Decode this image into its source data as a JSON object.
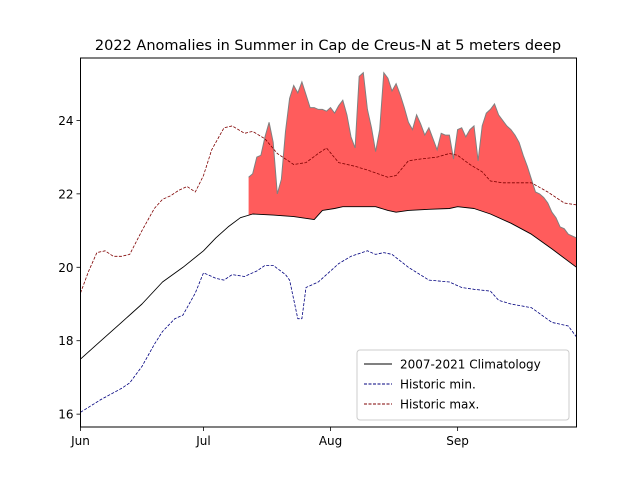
{
  "chart_data": {
    "type": "line",
    "title": "2022 Anomalies in Summer in Cap de Creus-N at 5 meters deep",
    "xlabel": "",
    "ylabel": "",
    "x_range_days": [
      0,
      121
    ],
    "x_ticks": [
      {
        "label": "Jun",
        "day": 0
      },
      {
        "label": "Jul",
        "day": 30
      },
      {
        "label": "Aug",
        "day": 61
      },
      {
        "label": "Sep",
        "day": 92
      }
    ],
    "ylim": [
      15.65,
      25.7
    ],
    "y_ticks": [
      16,
      18,
      20,
      22,
      24
    ],
    "grid": false,
    "legend_position": "lower-right",
    "series": [
      {
        "name": "2007-2021 Climatology",
        "color": "#000000",
        "style": "solid",
        "points": [
          [
            0,
            17.5
          ],
          [
            5,
            18.0
          ],
          [
            10,
            18.5
          ],
          [
            15,
            19.0
          ],
          [
            20,
            19.6
          ],
          [
            25,
            20.0
          ],
          [
            30,
            20.45
          ],
          [
            33,
            20.8
          ],
          [
            36,
            21.1
          ],
          [
            39,
            21.35
          ],
          [
            42,
            21.45
          ],
          [
            47,
            21.42
          ],
          [
            52,
            21.38
          ],
          [
            57,
            21.3
          ],
          [
            59,
            21.55
          ],
          [
            62,
            21.6
          ],
          [
            64,
            21.65
          ],
          [
            69,
            21.65
          ],
          [
            72,
            21.65
          ],
          [
            75,
            21.55
          ],
          [
            77,
            21.5
          ],
          [
            80,
            21.55
          ],
          [
            85,
            21.58
          ],
          [
            90,
            21.6
          ],
          [
            92,
            21.65
          ],
          [
            96,
            21.6
          ],
          [
            100,
            21.45
          ],
          [
            105,
            21.2
          ],
          [
            110,
            20.9
          ],
          [
            115,
            20.5
          ],
          [
            121,
            20.0
          ]
        ]
      },
      {
        "name": "Historic min.",
        "color": "#00007f",
        "style": "dashed",
        "points": [
          [
            0,
            16.05
          ],
          [
            5,
            16.4
          ],
          [
            10,
            16.7
          ],
          [
            12,
            16.85
          ],
          [
            15,
            17.3
          ],
          [
            18,
            17.9
          ],
          [
            20,
            18.25
          ],
          [
            23,
            18.6
          ],
          [
            25,
            18.7
          ],
          [
            28,
            19.3
          ],
          [
            30,
            19.85
          ],
          [
            33,
            19.7
          ],
          [
            35,
            19.65
          ],
          [
            37,
            19.8
          ],
          [
            40,
            19.75
          ],
          [
            43,
            19.9
          ],
          [
            45,
            20.05
          ],
          [
            47,
            20.05
          ],
          [
            50,
            19.8
          ],
          [
            51,
            19.65
          ],
          [
            53,
            18.6
          ],
          [
            54,
            18.6
          ],
          [
            55,
            19.45
          ],
          [
            58,
            19.6
          ],
          [
            60,
            19.8
          ],
          [
            63,
            20.1
          ],
          [
            66,
            20.3
          ],
          [
            70,
            20.45
          ],
          [
            72,
            20.35
          ],
          [
            74,
            20.4
          ],
          [
            76,
            20.35
          ],
          [
            80,
            20.0
          ],
          [
            85,
            19.65
          ],
          [
            90,
            19.6
          ],
          [
            93,
            19.45
          ],
          [
            96,
            19.4
          ],
          [
            100,
            19.35
          ],
          [
            102,
            19.1
          ],
          [
            105,
            19.0
          ],
          [
            110,
            18.9
          ],
          [
            115,
            18.5
          ],
          [
            119,
            18.4
          ],
          [
            121,
            18.1
          ]
        ]
      },
      {
        "name": "Historic max.",
        "color": "#7f0000",
        "style": "dashed",
        "points": [
          [
            0,
            19.3
          ],
          [
            2,
            19.9
          ],
          [
            4,
            20.4
          ],
          [
            6,
            20.45
          ],
          [
            8,
            20.3
          ],
          [
            10,
            20.3
          ],
          [
            12,
            20.35
          ],
          [
            15,
            21.0
          ],
          [
            18,
            21.6
          ],
          [
            20,
            21.85
          ],
          [
            22,
            21.95
          ],
          [
            24,
            22.1
          ],
          [
            26,
            22.2
          ],
          [
            28,
            22.05
          ],
          [
            30,
            22.5
          ],
          [
            32,
            23.2
          ],
          [
            35,
            23.8
          ],
          [
            37,
            23.85
          ],
          [
            40,
            23.65
          ],
          [
            42,
            23.7
          ],
          [
            45,
            23.5
          ],
          [
            48,
            23.1
          ],
          [
            52,
            22.8
          ],
          [
            55,
            22.85
          ],
          [
            58,
            23.1
          ],
          [
            60,
            23.25
          ],
          [
            63,
            22.85
          ],
          [
            67,
            22.75
          ],
          [
            70,
            22.65
          ],
          [
            75,
            22.45
          ],
          [
            77,
            22.5
          ],
          [
            80,
            22.9
          ],
          [
            83,
            22.95
          ],
          [
            87,
            23.0
          ],
          [
            90,
            23.1
          ],
          [
            92,
            23.05
          ],
          [
            95,
            22.8
          ],
          [
            98,
            22.6
          ],
          [
            100,
            22.35
          ],
          [
            103,
            22.3
          ],
          [
            106,
            22.3
          ],
          [
            110,
            22.3
          ],
          [
            114,
            22.05
          ],
          [
            118,
            21.75
          ],
          [
            121,
            21.7
          ]
        ]
      }
    ],
    "anomaly_2022": {
      "color": "#ff5c5c",
      "edge_color": "#808080",
      "points": [
        [
          41,
          22.45
        ],
        [
          42,
          22.55
        ],
        [
          43,
          23.0
        ],
        [
          44,
          23.05
        ],
        [
          45,
          23.55
        ],
        [
          46,
          23.95
        ],
        [
          47,
          23.4
        ],
        [
          48,
          22.0
        ],
        [
          49,
          22.4
        ],
        [
          50,
          23.7
        ],
        [
          51,
          24.6
        ],
        [
          52,
          24.95
        ],
        [
          53,
          24.75
        ],
        [
          54,
          25.05
        ],
        [
          55,
          24.7
        ],
        [
          56,
          24.35
        ],
        [
          57,
          24.35
        ],
        [
          58,
          24.3
        ],
        [
          59,
          24.3
        ],
        [
          60,
          24.25
        ],
        [
          61,
          24.35
        ],
        [
          62,
          24.2
        ],
        [
          63,
          24.4
        ],
        [
          64,
          24.55
        ],
        [
          65,
          24.15
        ],
        [
          66,
          23.55
        ],
        [
          67,
          23.25
        ],
        [
          68,
          25.2
        ],
        [
          69,
          25.3
        ],
        [
          70,
          24.3
        ],
        [
          71,
          23.8
        ],
        [
          72,
          23.15
        ],
        [
          73,
          23.75
        ],
        [
          74,
          25.3
        ],
        [
          75,
          25.15
        ],
        [
          76,
          24.8
        ],
        [
          77,
          25.0
        ],
        [
          78,
          24.7
        ],
        [
          79,
          24.35
        ],
        [
          80,
          23.95
        ],
        [
          81,
          23.75
        ],
        [
          82,
          24.15
        ],
        [
          83,
          23.9
        ],
        [
          84,
          23.6
        ],
        [
          85,
          23.8
        ],
        [
          86,
          23.5
        ],
        [
          87,
          23.2
        ],
        [
          88,
          23.65
        ],
        [
          89,
          23.6
        ],
        [
          90,
          23.6
        ],
        [
          91,
          22.95
        ],
        [
          92,
          23.75
        ],
        [
          93,
          23.8
        ],
        [
          94,
          23.55
        ],
        [
          95,
          23.75
        ],
        [
          96,
          23.85
        ],
        [
          97,
          22.9
        ],
        [
          98,
          23.85
        ],
        [
          99,
          24.2
        ],
        [
          100,
          24.3
        ],
        [
          101,
          24.45
        ],
        [
          102,
          24.15
        ],
        [
          103,
          24.0
        ],
        [
          104,
          23.85
        ],
        [
          105,
          23.75
        ],
        [
          106,
          23.6
        ],
        [
          107,
          23.4
        ],
        [
          108,
          23.05
        ],
        [
          109,
          22.75
        ],
        [
          110,
          22.4
        ],
        [
          111,
          22.05
        ],
        [
          112,
          22.0
        ],
        [
          113,
          21.9
        ],
        [
          114,
          21.75
        ],
        [
          115,
          21.5
        ],
        [
          116,
          21.35
        ],
        [
          117,
          21.1
        ],
        [
          118,
          21.05
        ],
        [
          119,
          20.9
        ],
        [
          120,
          20.85
        ],
        [
          121,
          20.8
        ]
      ]
    }
  }
}
